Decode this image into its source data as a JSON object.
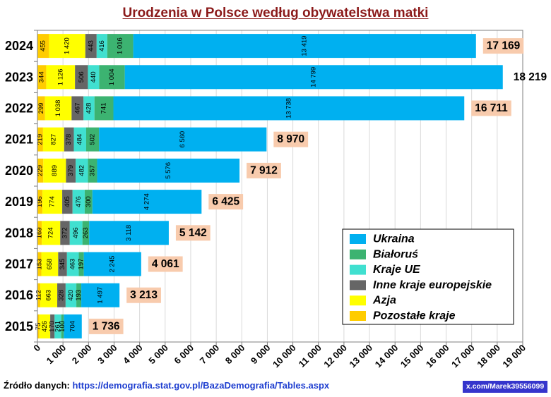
{
  "source": {
    "label": "Źródło danych:",
    "url": "https://demografia.stat.gov.pl/BazaDemografia/Tables.aspx"
  },
  "badge": "x.com/Marek39556099",
  "colors": {
    "title": "#8B1A1A",
    "total_box": "#F8CBAD",
    "source_url": "#1F3FD0",
    "badge_bg": "#3535CC"
  },
  "chart_data": {
    "type": "bar",
    "orientation": "horizontal",
    "stacked": true,
    "title": "Urodzenia w Polsce według obywatelstwa matki",
    "categories": [
      "2024",
      "2023",
      "2022",
      "2021",
      "2020",
      "2019",
      "2018",
      "2017",
      "2016",
      "2015"
    ],
    "series": [
      {
        "name": "Pozostałe kraje",
        "color": "#FFCC00",
        "values": [
          455,
          344,
          299,
          219,
          229,
          196,
          169,
          153,
          112,
          75
        ]
      },
      {
        "name": "Azja",
        "color": "#FFFF00",
        "values": [
          1420,
          1126,
          1038,
          827,
          889,
          774,
          724,
          658,
          663,
          426
        ]
      },
      {
        "name": "Inne kraje europejskie",
        "color": "#666666",
        "values": [
          443,
          506,
          467,
          378,
          379,
          405,
          372,
          345,
          328,
          170
        ]
      },
      {
        "name": "Kraje UE",
        "color": "#40E0D0",
        "values": [
          416,
          440,
          428,
          484,
          482,
          476,
          496,
          463,
          420,
          261
        ]
      },
      {
        "name": "Białoruś",
        "color": "#3CB371",
        "values": [
          1016,
          1004,
          741,
          502,
          357,
          300,
          263,
          197,
          193,
          100
        ]
      },
      {
        "name": "Ukraina",
        "color": "#00B0F0",
        "values": [
          13419,
          14799,
          13738,
          6560,
          5576,
          4274,
          3118,
          2245,
          1497,
          704
        ]
      }
    ],
    "totals": [
      17169,
      18219,
      16711,
      8970,
      7912,
      6425,
      5142,
      4061,
      3213,
      1736
    ],
    "xlim": [
      0,
      19000
    ],
    "x_ticks": [
      0,
      1000,
      2000,
      3000,
      4000,
      5000,
      6000,
      7000,
      8000,
      9000,
      10000,
      11000,
      12000,
      13000,
      14000,
      15000,
      16000,
      17000,
      18000,
      19000
    ],
    "grid": true,
    "legend": "bottom-right"
  }
}
